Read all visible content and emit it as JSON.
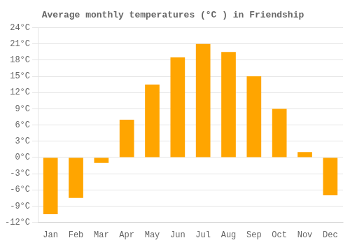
{
  "chart_data": {
    "type": "bar",
    "title": "Average monthly temperatures (°C ) in Friendship",
    "categories": [
      "Jan",
      "Feb",
      "Mar",
      "Apr",
      "May",
      "Jun",
      "Jul",
      "Aug",
      "Sep",
      "Oct",
      "Nov",
      "Dec"
    ],
    "values": [
      -10.5,
      -7.5,
      -1.0,
      7.0,
      13.5,
      18.5,
      21.0,
      19.5,
      15.0,
      9.0,
      1.0,
      -7.0
    ],
    "color": "#FFA500",
    "ylim": [
      -12,
      24
    ],
    "yticks": [
      {
        "value": -12,
        "label": "-12°C"
      },
      {
        "value": -9,
        "label": "-9°C"
      },
      {
        "value": -6,
        "label": "-6°C"
      },
      {
        "value": -3,
        "label": "-3°C"
      },
      {
        "value": 0,
        "label": "0°C"
      },
      {
        "value": 3,
        "label": "3°C"
      },
      {
        "value": 6,
        "label": "6°C"
      },
      {
        "value": 9,
        "label": "9°C"
      },
      {
        "value": 12,
        "label": "12°C"
      },
      {
        "value": 15,
        "label": "15°C"
      },
      {
        "value": 18,
        "label": "18°C"
      },
      {
        "value": 21,
        "label": "21°C"
      },
      {
        "value": 24,
        "label": "24°C"
      }
    ],
    "grid": true
  }
}
